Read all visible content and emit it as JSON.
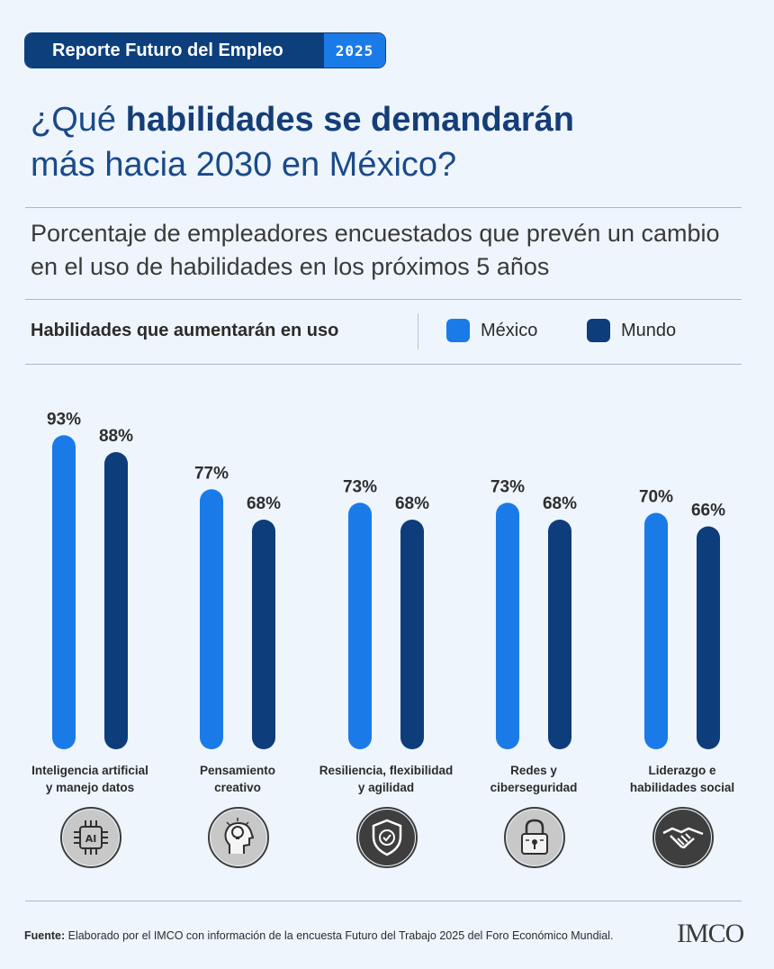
{
  "header": {
    "badge_text": "Reporte Futuro del Empleo",
    "badge_year": "2025"
  },
  "title": {
    "prefix": "¿Qué ",
    "bold": "habilidades se demandarán",
    "line2": "más hacia 2030 en México?"
  },
  "subtitle": "Porcentaje de empleadores encuestados que prevén un cambio en el uso de habilidades en los próximos 5 años",
  "legend": {
    "title": "Habilidades que aumentarán en uso",
    "items": [
      {
        "label": "México",
        "color": "#1a7be8"
      },
      {
        "label": "Mundo",
        "color": "#0d3d7a"
      }
    ]
  },
  "chart_data": {
    "type": "bar",
    "categories": [
      "Inteligencia artificial y manejo datos",
      "Pensamiento creativo",
      "Resiliencia, flexibilidad y agilidad",
      "Redes y ciberseguridad",
      "Liderazgo e habilidades social"
    ],
    "category_lines": [
      [
        "Inteligencia artificial",
        "y manejo datos"
      ],
      [
        "Pensamiento",
        "creativo"
      ],
      [
        "Resiliencia, flexibilidad",
        "y agilidad"
      ],
      [
        "Redes y",
        "ciberseguridad"
      ],
      [
        "Liderazgo e",
        "habilidades social"
      ]
    ],
    "series": [
      {
        "name": "México",
        "values": [
          93,
          77,
          73,
          73,
          70
        ],
        "color": "#1a7be8"
      },
      {
        "name": "Mundo",
        "values": [
          88,
          68,
          68,
          68,
          66
        ],
        "color": "#0d3d7a"
      }
    ],
    "value_suffix": "%",
    "ylim": [
      0,
      100
    ],
    "grid": false,
    "legend_position": "top"
  },
  "icons": [
    {
      "name": "ai-chip-icon",
      "label": "AI"
    },
    {
      "name": "creative-head-lightbulb-icon"
    },
    {
      "name": "shield-check-icon"
    },
    {
      "name": "padlock-icon"
    },
    {
      "name": "handshake-icon"
    }
  ],
  "footer": {
    "label": "Fuente:",
    "text": " Elaborado por el IMCO con información de la encuesta Futuro del Trabajo 2025 del Foro Económico Mundial."
  },
  "logo": {
    "text": "IMCO"
  }
}
